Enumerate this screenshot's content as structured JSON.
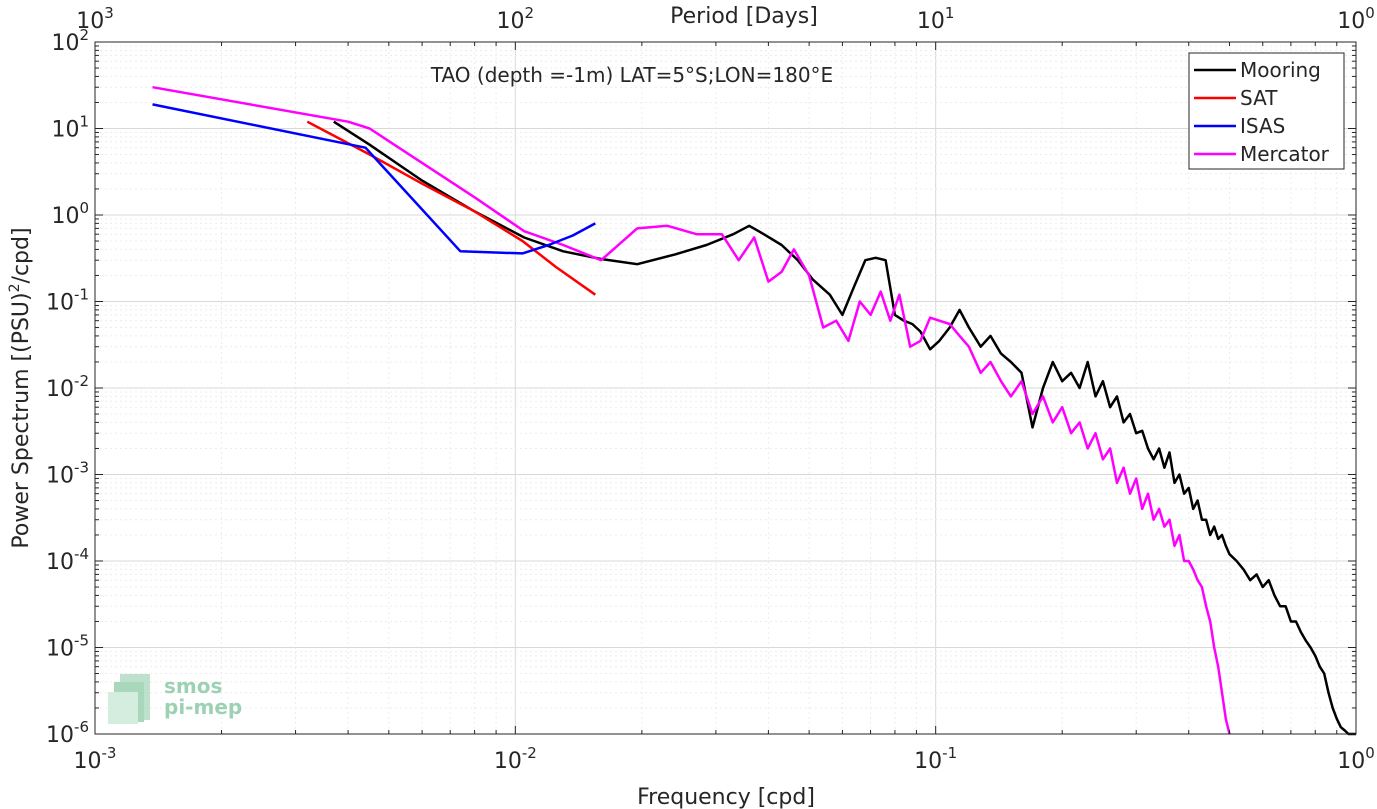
{
  "chart_data": {
    "type": "line",
    "title": "TAO (depth =-1m) LAT=5°S;LON=180°E",
    "xlabel": "Frequency [cpd]",
    "ylabel_main": "Power Spectrum [(PSU)",
    "ylabel_sup": "2",
    "ylabel_tail": "/cpd]",
    "top_xlabel": "Period [Days]",
    "x_scale": "log",
    "y_scale": "log",
    "xlim": [
      0.001,
      1
    ],
    "ylim": [
      1e-06,
      100
    ],
    "grid": true,
    "legend_position": "top-right",
    "x_ticks": [
      {
        "base": "10",
        "exp": "-3"
      },
      {
        "base": "10",
        "exp": "-2"
      },
      {
        "base": "10",
        "exp": "-1"
      },
      {
        "base": "10",
        "exp": "0"
      }
    ],
    "top_ticks": [
      {
        "base": "10",
        "exp": "3"
      },
      {
        "base": "10",
        "exp": "2"
      },
      {
        "base": "10",
        "exp": "1"
      },
      {
        "base": "10",
        "exp": "0"
      }
    ],
    "y_ticks": [
      {
        "base": "10",
        "exp": "-6"
      },
      {
        "base": "10",
        "exp": "-5"
      },
      {
        "base": "10",
        "exp": "-4"
      },
      {
        "base": "10",
        "exp": "-3"
      },
      {
        "base": "10",
        "exp": "-2"
      },
      {
        "base": "10",
        "exp": "-1"
      },
      {
        "base": "10",
        "exp": "0"
      },
      {
        "base": "10",
        "exp": "1"
      },
      {
        "base": "10",
        "exp": "2"
      }
    ],
    "series": [
      {
        "name": "Mooring",
        "color": "#000000",
        "x": [
          0.0037,
          0.0045,
          0.006,
          0.008,
          0.0105,
          0.013,
          0.016,
          0.0195,
          0.024,
          0.0285,
          0.033,
          0.036,
          0.039,
          0.043,
          0.047,
          0.051,
          0.056,
          0.06,
          0.064,
          0.068,
          0.072,
          0.076,
          0.08,
          0.084,
          0.088,
          0.092,
          0.097,
          0.102,
          0.108,
          0.114,
          0.12,
          0.128,
          0.135,
          0.143,
          0.151,
          0.16,
          0.17,
          0.18,
          0.19,
          0.2,
          0.21,
          0.22,
          0.23,
          0.24,
          0.25,
          0.26,
          0.27,
          0.28,
          0.29,
          0.3,
          0.31,
          0.32,
          0.33,
          0.34,
          0.35,
          0.36,
          0.37,
          0.38,
          0.39,
          0.4,
          0.41,
          0.42,
          0.43,
          0.44,
          0.45,
          0.46,
          0.47,
          0.48,
          0.49,
          0.5,
          0.52,
          0.54,
          0.56,
          0.58,
          0.6,
          0.62,
          0.64,
          0.66,
          0.68,
          0.7,
          0.72,
          0.74,
          0.76,
          0.78,
          0.8,
          0.82,
          0.84,
          0.86,
          0.88,
          0.9,
          0.92,
          0.94,
          0.96,
          0.98,
          1.0
        ],
        "y": [
          12,
          6.5,
          2.5,
          1.1,
          0.55,
          0.38,
          0.31,
          0.27,
          0.35,
          0.45,
          0.6,
          0.75,
          0.6,
          0.45,
          0.3,
          0.18,
          0.12,
          0.07,
          0.15,
          0.3,
          0.32,
          0.3,
          0.07,
          0.06,
          0.055,
          0.045,
          0.028,
          0.035,
          0.05,
          0.08,
          0.05,
          0.03,
          0.04,
          0.025,
          0.02,
          0.015,
          0.0035,
          0.01,
          0.02,
          0.012,
          0.015,
          0.01,
          0.02,
          0.008,
          0.012,
          0.006,
          0.008,
          0.004,
          0.005,
          0.003,
          0.0032,
          0.002,
          0.0015,
          0.002,
          0.0012,
          0.0018,
          0.0008,
          0.001,
          0.0006,
          0.0007,
          0.0004,
          0.0005,
          0.0003,
          0.0003,
          0.0002,
          0.00025,
          0.00018,
          0.0002,
          0.00015,
          0.00012,
          0.0001,
          8e-05,
          6e-05,
          7e-05,
          5e-05,
          6e-05,
          4e-05,
          3e-05,
          3e-05,
          2e-05,
          2e-05,
          1.5e-05,
          1.2e-05,
          1e-05,
          8e-06,
          6e-06,
          5e-06,
          3e-06,
          2e-06,
          1.5e-06,
          1.2e-06,
          1.1e-06,
          1e-06,
          1e-06,
          1e-06
        ]
      },
      {
        "name": "SAT",
        "color": "#ff0000",
        "x": [
          0.0032,
          0.0045,
          0.006,
          0.008,
          0.0104,
          0.0125,
          0.0155
        ],
        "y": [
          12,
          5,
          2.3,
          1.1,
          0.5,
          0.25,
          0.12
        ]
      },
      {
        "name": "ISAS",
        "color": "#0000ff",
        "x": [
          0.00137,
          0.0044,
          0.0074,
          0.0104,
          0.012,
          0.0137,
          0.0155
        ],
        "y": [
          19,
          6,
          0.38,
          0.36,
          0.45,
          0.58,
          0.8
        ]
      },
      {
        "name": "Mercator",
        "color": "#ff00ff",
        "x": [
          0.00137,
          0.004,
          0.0045,
          0.006,
          0.008,
          0.0105,
          0.013,
          0.016,
          0.0195,
          0.023,
          0.027,
          0.031,
          0.034,
          0.037,
          0.04,
          0.043,
          0.046,
          0.05,
          0.054,
          0.058,
          0.062,
          0.066,
          0.07,
          0.074,
          0.078,
          0.082,
          0.087,
          0.092,
          0.097,
          0.102,
          0.108,
          0.114,
          0.12,
          0.128,
          0.135,
          0.143,
          0.151,
          0.16,
          0.17,
          0.18,
          0.19,
          0.2,
          0.21,
          0.22,
          0.23,
          0.24,
          0.25,
          0.26,
          0.27,
          0.28,
          0.29,
          0.3,
          0.31,
          0.32,
          0.33,
          0.34,
          0.35,
          0.36,
          0.37,
          0.38,
          0.39,
          0.4,
          0.41,
          0.42,
          0.43,
          0.44,
          0.45,
          0.46,
          0.47,
          0.48,
          0.49,
          0.5
        ],
        "y": [
          30,
          12,
          10,
          4,
          1.6,
          0.65,
          0.45,
          0.3,
          0.7,
          0.75,
          0.6,
          0.6,
          0.3,
          0.55,
          0.17,
          0.22,
          0.4,
          0.2,
          0.05,
          0.06,
          0.035,
          0.1,
          0.07,
          0.13,
          0.06,
          0.12,
          0.03,
          0.035,
          0.065,
          0.06,
          0.055,
          0.04,
          0.03,
          0.015,
          0.02,
          0.012,
          0.008,
          0.012,
          0.005,
          0.008,
          0.004,
          0.006,
          0.003,
          0.004,
          0.002,
          0.003,
          0.0015,
          0.002,
          0.0008,
          0.0012,
          0.0006,
          0.0009,
          0.0004,
          0.0006,
          0.0003,
          0.0004,
          0.00025,
          0.0003,
          0.00015,
          0.0002,
          0.0001,
          0.0001,
          8e-05,
          6e-05,
          5e-05,
          3e-05,
          2e-05,
          1e-05,
          6e-06,
          3e-06,
          1.5e-06,
          1e-06
        ]
      }
    ]
  },
  "watermark": {
    "line1": "smos",
    "line2": "pi-mep"
  }
}
